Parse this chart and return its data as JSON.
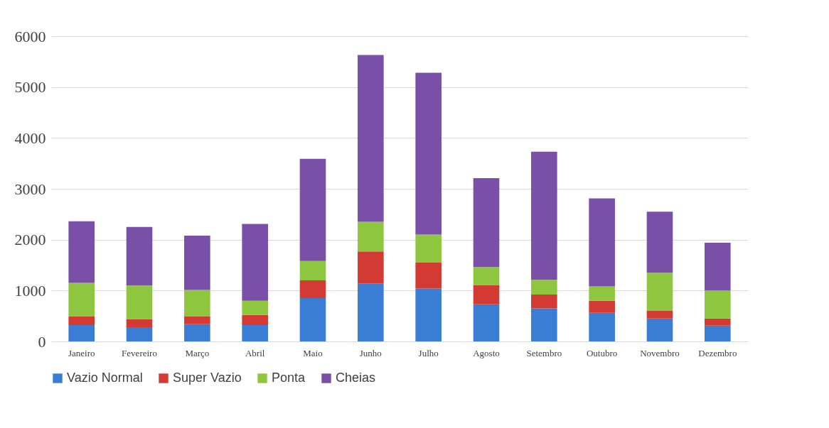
{
  "chart_data": {
    "type": "bar",
    "stacked": true,
    "categories": [
      "Janeiro",
      "Fevereiro",
      "Março",
      "Abril",
      "Maio",
      "Junho",
      "Julho",
      "Agosto",
      "Setembro",
      "Outubro",
      "Novembro",
      "Dezembro"
    ],
    "series": [
      {
        "name": "Vazio Normal",
        "color": "#3a7dd4",
        "values": [
          320,
          280,
          340,
          320,
          850,
          1140,
          1040,
          730,
          650,
          560,
          450,
          310
        ]
      },
      {
        "name": "Super Vazio",
        "color": "#d23a33",
        "values": [
          170,
          160,
          150,
          200,
          350,
          630,
          510,
          380,
          270,
          240,
          150,
          140
        ]
      },
      {
        "name": "Ponta",
        "color": "#8ec63f",
        "values": [
          660,
          660,
          520,
          280,
          380,
          580,
          550,
          350,
          290,
          280,
          750,
          550
        ]
      },
      {
        "name": "Cheias",
        "color": "#7a4fa8",
        "values": [
          1210,
          1150,
          1070,
          1510,
          2010,
          3280,
          3180,
          1750,
          2520,
          1730,
          1200,
          940
        ]
      }
    ],
    "ylim": [
      0,
      6000
    ],
    "yticks": [
      0,
      1000,
      2000,
      3000,
      4000,
      5000,
      6000
    ],
    "grid": "y",
    "legend": "bottom"
  }
}
